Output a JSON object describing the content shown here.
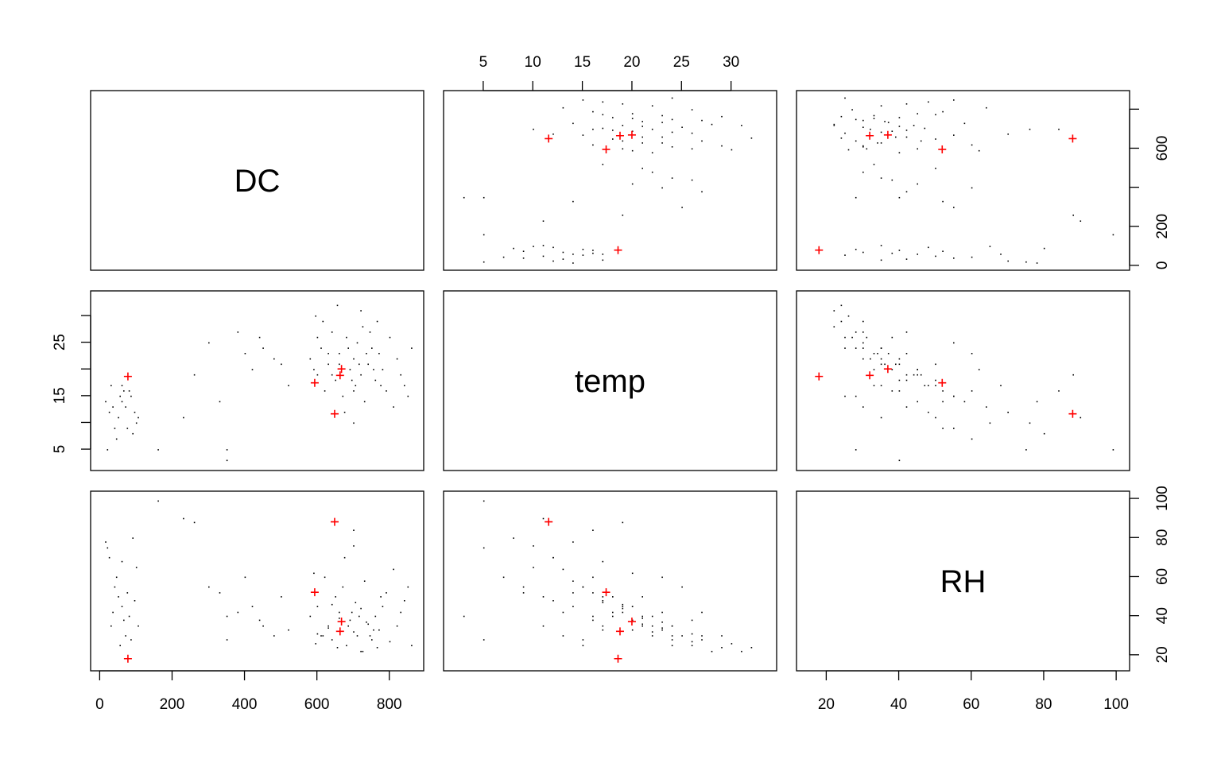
{
  "chart_data": {
    "type": "scatter",
    "title": "",
    "variables": [
      "DC",
      "temp",
      "RH"
    ],
    "ranges": {
      "DC": [
        -25,
        895
      ],
      "temp": [
        1,
        34.6
      ],
      "RH": [
        11.8,
        103.7
      ]
    },
    "ticks": {
      "DC": {
        "values": [
          0,
          200,
          400,
          600,
          800
        ],
        "labels_bottom": [
          "0",
          "200",
          "400",
          "600",
          "800"
        ],
        "labels_right": [
          "0",
          "200",
          "",
          "600",
          ""
        ]
      },
      "temp": {
        "values": [
          5,
          10,
          15,
          20,
          25,
          30
        ],
        "labels_top": [
          "5",
          "10",
          "15",
          "20",
          "25",
          "30"
        ],
        "labels_left": [
          "5",
          "",
          "15",
          "",
          "25",
          ""
        ]
      },
      "RH": {
        "values": [
          20,
          40,
          60,
          80,
          100
        ],
        "labels_bottom": [
          "20",
          "40",
          "60",
          "80",
          "100"
        ],
        "labels_right": [
          "20",
          "40",
          "60",
          "80",
          "100"
        ]
      }
    },
    "highlight_color": "#ff0000",
    "point_color": "#000000",
    "highlighted_points": [
      [
        649,
        11.6,
        88
      ],
      [
        594,
        17.4,
        52
      ],
      [
        668,
        20.0,
        37
      ],
      [
        664,
        18.8,
        32
      ],
      [
        78,
        18.6,
        18
      ]
    ],
    "points": [
      [
        25,
        12,
        70
      ],
      [
        40,
        9,
        55
      ],
      [
        60,
        14,
        45
      ],
      [
        80,
        16,
        40
      ],
      [
        90,
        8,
        80
      ],
      [
        30,
        17,
        35
      ],
      [
        50,
        11,
        50
      ],
      [
        70,
        13,
        30
      ],
      [
        100,
        10,
        65
      ],
      [
        85,
        15,
        28
      ],
      [
        20,
        5,
        75
      ],
      [
        45,
        7,
        60
      ],
      [
        95,
        12,
        48
      ],
      [
        65,
        16,
        38
      ],
      [
        35,
        13,
        42
      ],
      [
        75,
        9,
        52
      ],
      [
        55,
        15,
        25
      ],
      [
        15,
        14,
        78
      ],
      [
        105,
        11,
        35
      ],
      [
        60,
        17,
        68
      ],
      [
        230,
        11,
        90
      ],
      [
        300,
        25,
        55
      ],
      [
        350,
        3,
        40
      ],
      [
        350,
        5,
        28
      ],
      [
        400,
        23,
        60
      ],
      [
        420,
        20,
        45
      ],
      [
        450,
        24,
        35
      ],
      [
        480,
        22,
        30
      ],
      [
        500,
        21,
        50
      ],
      [
        520,
        17,
        33
      ],
      [
        260,
        19,
        88
      ],
      [
        330,
        14,
        52
      ],
      [
        160,
        5,
        99
      ],
      [
        380,
        27,
        42
      ],
      [
        440,
        26,
        38
      ],
      [
        580,
        22,
        40
      ],
      [
        600,
        19,
        45
      ],
      [
        610,
        24,
        30
      ],
      [
        620,
        16,
        60
      ],
      [
        630,
        21,
        35
      ],
      [
        640,
        27,
        28
      ],
      [
        650,
        18,
        50
      ],
      [
        660,
        23,
        42
      ],
      [
        670,
        15,
        55
      ],
      [
        680,
        26,
        25
      ],
      [
        690,
        20,
        38
      ],
      [
        700,
        22,
        32
      ],
      [
        705,
        17,
        47
      ],
      [
        710,
        25,
        30
      ],
      [
        720,
        19,
        44
      ],
      [
        725,
        28,
        22
      ],
      [
        730,
        14,
        58
      ],
      [
        740,
        21,
        36
      ],
      [
        750,
        24,
        28
      ],
      [
        760,
        18,
        40
      ],
      [
        770,
        23,
        33
      ],
      [
        780,
        20,
        45
      ],
      [
        790,
        16,
        52
      ],
      [
        800,
        26,
        27
      ],
      [
        810,
        13,
        64
      ],
      [
        820,
        22,
        35
      ],
      [
        830,
        19,
        42
      ],
      [
        840,
        17,
        48
      ],
      [
        850,
        15,
        55
      ],
      [
        860,
        24,
        25
      ],
      [
        595,
        30,
        26
      ],
      [
        615,
        29,
        30
      ],
      [
        655,
        32,
        24
      ],
      [
        675,
        12,
        70
      ],
      [
        700,
        10,
        76
      ],
      [
        720,
        31,
        22
      ],
      [
        745,
        27,
        30
      ],
      [
        765,
        29,
        24
      ],
      [
        685,
        24,
        35
      ],
      [
        695,
        18,
        42
      ],
      [
        715,
        21,
        40
      ],
      [
        735,
        23,
        37
      ],
      [
        755,
        20,
        33
      ],
      [
        775,
        17,
        50
      ],
      [
        640,
        19,
        46
      ],
      [
        660,
        21,
        39
      ],
      [
        600,
        26,
        31
      ],
      [
        630,
        23,
        34
      ],
      [
        590,
        20,
        62
      ],
      [
        700,
        16,
        84
      ]
    ]
  }
}
